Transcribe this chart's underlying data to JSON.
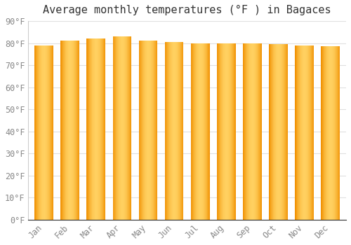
{
  "title": "Average monthly temperatures (°F ) in Bagaces",
  "months": [
    "Jan",
    "Feb",
    "Mar",
    "Apr",
    "May",
    "Jun",
    "Jul",
    "Aug",
    "Sep",
    "Oct",
    "Nov",
    "Dec"
  ],
  "values": [
    79.0,
    81.0,
    82.0,
    83.0,
    81.0,
    80.5,
    80.0,
    80.0,
    80.0,
    79.5,
    79.0,
    78.5
  ],
  "ylim": [
    0,
    90
  ],
  "yticks": [
    0,
    10,
    20,
    30,
    40,
    50,
    60,
    70,
    80,
    90
  ],
  "bar_color_center": "#FFD966",
  "bar_color_edge": "#E8900A",
  "bar_color_main": "#FFA800",
  "background_color": "#FFFFFF",
  "grid_color": "#E0E0E0",
  "title_fontsize": 11,
  "tick_fontsize": 8.5,
  "title_color": "#333333",
  "tick_color": "#888888"
}
